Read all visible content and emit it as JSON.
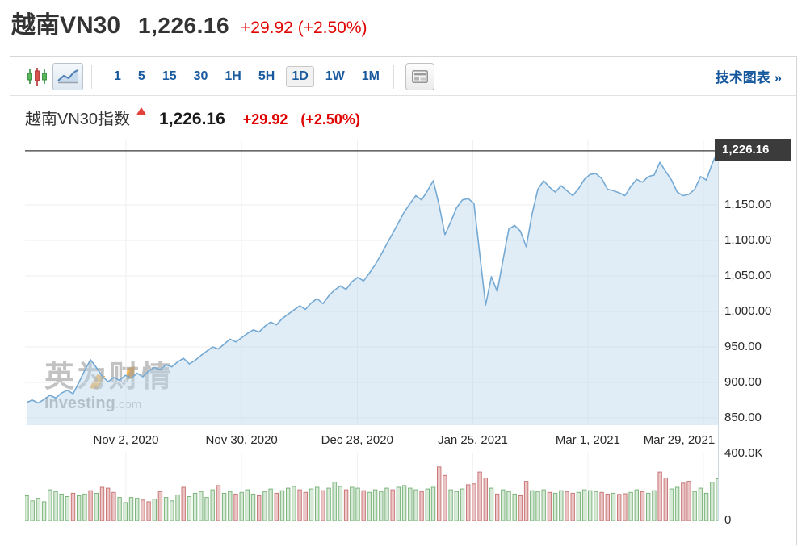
{
  "page_header": {
    "title": "越南VN30",
    "price": "1,226.16",
    "change": "+29.92 (+2.50%)"
  },
  "toolbar": {
    "chart_type_icons": [
      "candlestick-chart",
      "line-chart"
    ],
    "selected_chart_type": "line-chart",
    "intervals": [
      "1",
      "5",
      "15",
      "30",
      "1H",
      "5H",
      "1D",
      "1W",
      "1M"
    ],
    "selected_interval": "1D",
    "news_icon": "newspaper-icon",
    "link": "技术图表 »"
  },
  "chart_header": {
    "title": "越南VN30指数",
    "direction_icon": "up-arrow-red",
    "price": "1,226.16",
    "change": "+29.92",
    "change_pct": "(+2.50%)"
  },
  "watermark": {
    "cn": "英为财情",
    "en": "Investing",
    "en_suffix": ".com"
  },
  "chart_data": {
    "type": "area",
    "title": "越南VN30指数",
    "line_color": "#74a9d4",
    "area_color": "rgba(188,214,236,0.45)",
    "last_price": 1226.16,
    "last_price_label": "1,226.16",
    "ylim": [
      839.8,
      1242.0
    ],
    "y_ticks": [
      {
        "label": "1,150.00",
        "value": 1150
      },
      {
        "label": "1,100.00",
        "value": 1100
      },
      {
        "label": "1,050.00",
        "value": 1050
      },
      {
        "label": "1,000.00",
        "value": 1000
      },
      {
        "label": "950.00",
        "value": 950
      },
      {
        "label": "900.00",
        "value": 900
      },
      {
        "label": "850.00",
        "value": 850
      }
    ],
    "x_ticks": [
      {
        "label": "Nov 2, 2020",
        "pos": 17.1
      },
      {
        "label": "Nov 30, 2020",
        "pos": 37.0
      },
      {
        "label": "Dec 28, 2020",
        "pos": 56.9
      },
      {
        "label": "Jan 25, 2021",
        "pos": 76.8
      },
      {
        "label": "Mar 1, 2021",
        "pos": 96.6
      },
      {
        "label": "Mar 29, 2021",
        "pos": 116.5
      }
    ],
    "values": [
      872,
      875,
      871,
      876,
      882,
      878,
      885,
      889,
      884,
      900,
      917,
      932,
      921,
      909,
      901,
      907,
      903,
      910,
      906,
      913,
      908,
      916,
      921,
      918,
      925,
      922,
      929,
      934,
      926,
      931,
      938,
      944,
      950,
      947,
      954,
      961,
      957,
      963,
      969,
      974,
      971,
      979,
      985,
      981,
      990,
      996,
      1002,
      1008,
      1003,
      1012,
      1018,
      1011,
      1022,
      1030,
      1036,
      1031,
      1042,
      1048,
      1043,
      1054,
      1066,
      1080,
      1095,
      1110,
      1125,
      1140,
      1152,
      1163,
      1157,
      1170,
      1184,
      1150,
      1108,
      1126,
      1146,
      1157,
      1159,
      1152,
      1080,
      1009,
      1049,
      1028,
      1072,
      1116,
      1121,
      1113,
      1091,
      1137,
      1172,
      1184,
      1175,
      1168,
      1177,
      1170,
      1163,
      1173,
      1186,
      1193,
      1194,
      1187,
      1172,
      1170,
      1167,
      1163,
      1176,
      1186,
      1182,
      1190,
      1192,
      1210,
      1197,
      1185,
      1168,
      1163,
      1165,
      1172,
      1190,
      1185,
      1208,
      1226.16
    ],
    "volume": {
      "ticks": [
        "400.0K",
        "0"
      ],
      "max_k": 400,
      "up_color": "#7cb47c",
      "down_color": "#c97979",
      "values_k": [
        150,
        120,
        135,
        115,
        185,
        175,
        160,
        145,
        165,
        150,
        160,
        180,
        165,
        200,
        195,
        170,
        140,
        110,
        140,
        135,
        125,
        115,
        130,
        175,
        140,
        120,
        155,
        200,
        145,
        165,
        175,
        140,
        185,
        210,
        165,
        175,
        160,
        170,
        185,
        160,
        150,
        175,
        190,
        165,
        180,
        195,
        205,
        185,
        170,
        190,
        200,
        180,
        195,
        230,
        205,
        185,
        200,
        195,
        180,
        170,
        185,
        175,
        195,
        185,
        200,
        210,
        195,
        185,
        175,
        190,
        200,
        320,
        270,
        185,
        175,
        190,
        215,
        220,
        290,
        255,
        195,
        160,
        185,
        175,
        160,
        150,
        235,
        180,
        175,
        185,
        170,
        165,
        180,
        175,
        165,
        170,
        185,
        180,
        175,
        170,
        160,
        165,
        158,
        162,
        170,
        185,
        175,
        165,
        180,
        290,
        255,
        190,
        200,
        225,
        235,
        175,
        195,
        165,
        230,
        250
      ],
      "colors": "ggggggggrggrgrrrggggrrgrgggrgggggrggrgggrggrgggrrggrgggrggrggggrggggrggrrgggrrrrgrgggrrgggrggrrggggrrgrrggrggrrggrrggggg"
    }
  }
}
